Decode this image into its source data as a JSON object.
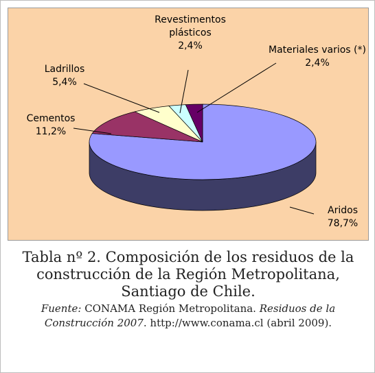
{
  "chart_data": {
    "type": "pie",
    "categories": [
      "Aridos",
      "Cementos",
      "Ladrillos",
      "Revestimentos plásticos",
      "Materiales varios (*)"
    ],
    "values": [
      78.7,
      11.2,
      5.4,
      2.4,
      2.4
    ],
    "value_labels": [
      "78,7%",
      "11,2%",
      "5,4%",
      "2,4%",
      "2,4%"
    ],
    "colors": [
      "#9999ff",
      "#993366",
      "#ffffcc",
      "#ccffff",
      "#660066"
    ]
  },
  "caption": {
    "title": "Tabla nº 2. Composición de los residuos de la construcción de la Región Metropolitana, Santiago de Chile.",
    "source": [
      "Fuente:",
      " CONAMA Región Metropolitana. ",
      "Residuos de la Construcción 2007",
      ". http://www.conama.cl (abril 2009)."
    ]
  }
}
